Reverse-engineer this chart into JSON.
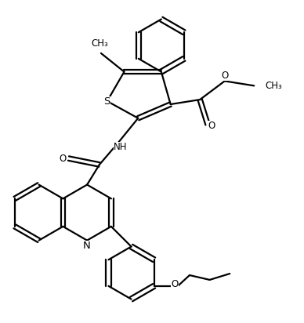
{
  "background_color": "#ffffff",
  "line_color": "#000000",
  "line_width": 1.6,
  "font_size": 8.5,
  "figsize": [
    3.88,
    4.12
  ],
  "dpi": 100,
  "xlim": [
    0,
    9.5
  ],
  "ylim": [
    0,
    10.3
  ]
}
